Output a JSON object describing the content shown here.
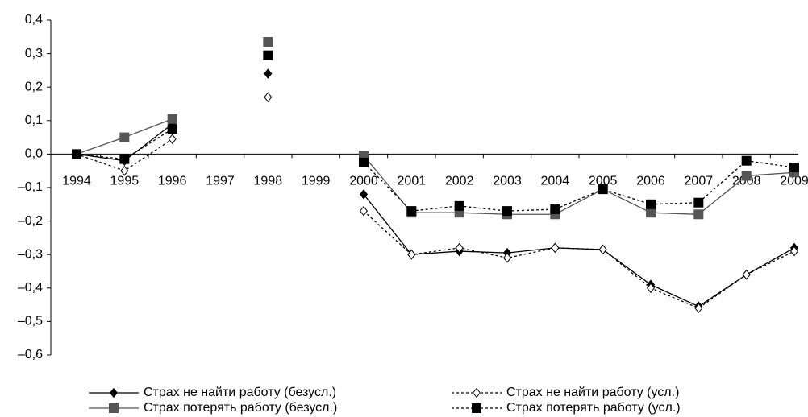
{
  "chart_data": {
    "type": "line",
    "categories": [
      "1994",
      "1995",
      "1996",
      "1997",
      "1998",
      "1999",
      "2000",
      "2001",
      "2002",
      "2003",
      "2004",
      "2005",
      "2006",
      "2007",
      "2008",
      "2009"
    ],
    "series": [
      {
        "name": "Страх не найти работу (безусл.)",
        "color": "#000000",
        "line_style": "solid",
        "marker": "diamond",
        "marker_fill": "#000000",
        "values": [
          0,
          -0.02,
          0.09,
          null,
          0.24,
          null,
          -0.12,
          -0.3,
          -0.29,
          -0.295,
          -0.28,
          -0.285,
          -0.39,
          -0.455,
          -0.36,
          -0.28
        ]
      },
      {
        "name": "Страх не найти работу (усл.)",
        "color": "#000000",
        "line_style": "dashed",
        "marker": "diamond",
        "marker_fill": "#ffffff",
        "values": [
          0,
          -0.05,
          0.045,
          null,
          0.17,
          null,
          -0.17,
          -0.3,
          -0.28,
          -0.31,
          -0.28,
          -0.285,
          -0.4,
          -0.46,
          -0.36,
          -0.29
        ]
      },
      {
        "name": "Страх потерять работу (безусл.)",
        "color": "#555555",
        "line_style": "solid",
        "marker": "square",
        "marker_fill": "#555555",
        "values": [
          0,
          0.05,
          0.105,
          null,
          0.335,
          null,
          -0.005,
          -0.175,
          -0.175,
          -0.18,
          -0.18,
          -0.105,
          -0.175,
          -0.18,
          -0.065,
          -0.055
        ]
      },
      {
        "name": "Страх потерять работу (усл.)",
        "color": "#000000",
        "line_style": "dashed",
        "marker": "square",
        "marker_fill": "#000000",
        "values": [
          0,
          -0.015,
          0.075,
          null,
          0.295,
          null,
          -0.025,
          -0.17,
          -0.155,
          -0.17,
          -0.165,
          -0.105,
          -0.15,
          -0.145,
          -0.02,
          -0.04
        ]
      }
    ],
    "ylim": [
      -0.6,
      0.4
    ],
    "yticks": [
      {
        "value": 0.4,
        "label": "0,4"
      },
      {
        "value": 0.3,
        "label": "0,3"
      },
      {
        "value": 0.2,
        "label": "0,2"
      },
      {
        "value": 0.1,
        "label": "0,1"
      },
      {
        "value": 0,
        "label": "0,0"
      },
      {
        "value": -0.1,
        "label": "–0,1"
      },
      {
        "value": -0.2,
        "label": "–0,2"
      },
      {
        "value": -0.3,
        "label": "–0,3"
      },
      {
        "value": -0.4,
        "label": "–0,4"
      },
      {
        "value": -0.5,
        "label": "–0,5"
      },
      {
        "value": -0.6,
        "label": "–0,6"
      }
    ],
    "grid": false
  }
}
